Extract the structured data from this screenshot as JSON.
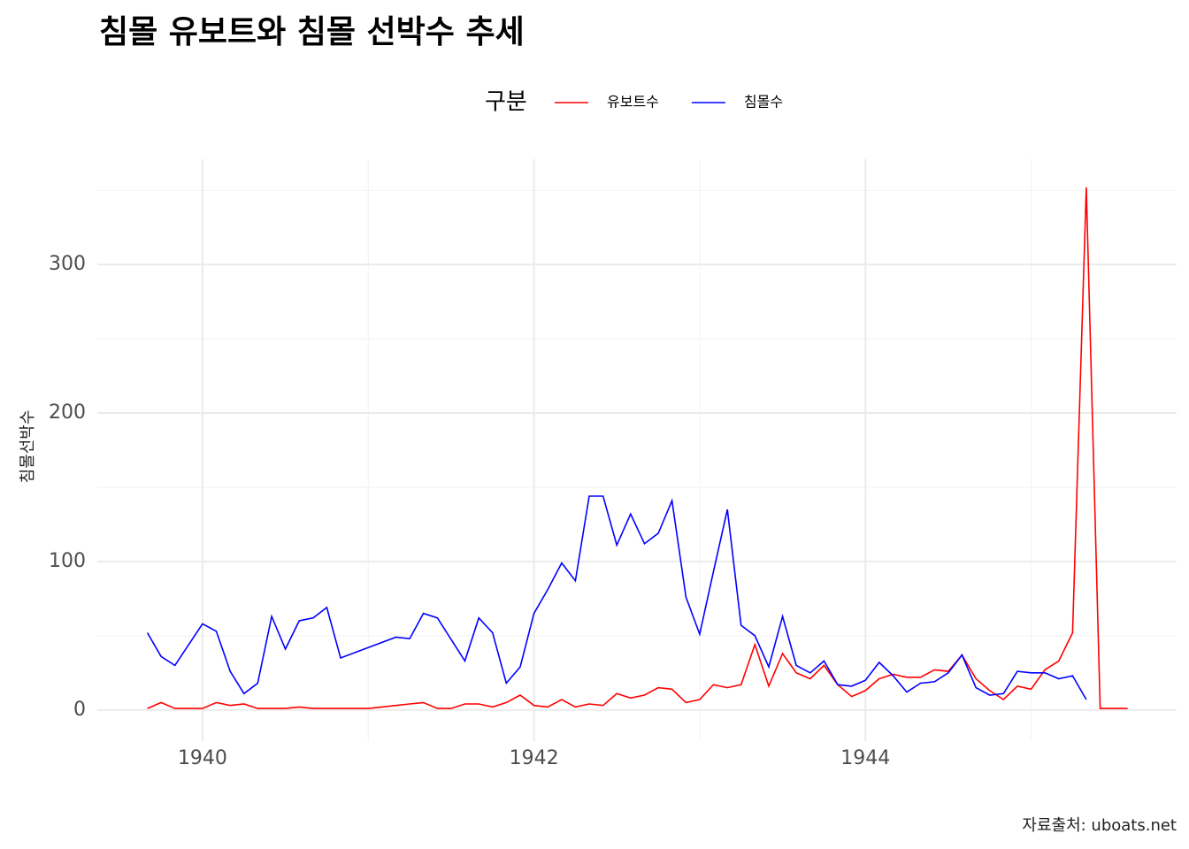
{
  "chart_data": {
    "type": "line",
    "title": "침몰 유보트와 침몰 선박수 추세",
    "y_label": "침몰선박수",
    "legend_title": "구분",
    "caption": "자료출처: uboats.net",
    "legend": "top",
    "grid": true,
    "xlim": [
      1939.365,
      1945.878
    ],
    "ylim": [
      -21,
      371
    ],
    "xticks": [
      1940,
      1942,
      1944
    ],
    "yticks": [
      0,
      100,
      200,
      300
    ],
    "x_minor_grid": [
      1941,
      1943,
      1945
    ],
    "y_minor_grid": [
      50,
      150,
      250,
      350
    ],
    "series": [
      {
        "name": "유보트수",
        "color": "#ff0000",
        "x": [
          1939.667,
          1939.75,
          1939.833,
          1939.917,
          1940,
          1940.083,
          1940.167,
          1940.25,
          1940.333,
          1940.417,
          1940.5,
          1940.583,
          1940.667,
          1940.75,
          1940.833,
          1940.917,
          1941,
          1941.083,
          1941.167,
          1941.25,
          1941.333,
          1941.417,
          1941.5,
          1941.583,
          1941.667,
          1941.75,
          1941.833,
          1941.917,
          1942,
          1942.083,
          1942.167,
          1942.25,
          1942.333,
          1942.417,
          1942.5,
          1942.583,
          1942.667,
          1942.75,
          1942.833,
          1942.917,
          1943,
          1943.083,
          1943.167,
          1943.25,
          1943.333,
          1943.417,
          1943.5,
          1943.583,
          1943.667,
          1943.75,
          1943.833,
          1943.917,
          1944,
          1944.083,
          1944.167,
          1944.25,
          1944.333,
          1944.417,
          1944.5,
          1944.583,
          1944.667,
          1944.75,
          1944.833,
          1944.917,
          1945,
          1945.083,
          1945.167,
          1945.25,
          1945.333,
          1945.417,
          1945.5,
          1945.583
        ],
        "values": [
          1,
          5,
          1,
          1,
          1,
          5,
          3,
          4,
          1,
          1,
          1,
          2,
          1,
          1,
          1,
          1,
          1,
          2,
          3,
          4,
          5,
          1,
          1,
          4,
          4,
          2,
          5,
          10,
          3,
          2,
          7,
          2,
          4,
          3,
          11,
          8,
          10,
          15,
          14,
          5,
          7,
          17,
          15,
          17,
          44,
          16,
          38,
          25,
          21,
          30,
          17,
          9,
          13,
          21,
          24,
          22,
          22,
          27,
          26,
          37,
          21,
          13,
          7,
          16,
          14,
          27,
          33,
          52,
          352,
          1,
          1,
          1
        ]
      },
      {
        "name": "침몰수",
        "color": "#0000ff",
        "x": [
          1939.667,
          1939.75,
          1939.833,
          1940,
          1940.083,
          1940.167,
          1940.25,
          1940.333,
          1940.417,
          1940.5,
          1940.583,
          1940.667,
          1940.75,
          1940.833,
          1941.167,
          1941.25,
          1941.333,
          1941.417,
          1941.583,
          1941.667,
          1941.75,
          1941.833,
          1941.917,
          1942,
          1942.083,
          1942.167,
          1942.25,
          1942.333,
          1942.417,
          1942.5,
          1942.583,
          1942.667,
          1942.75,
          1942.833,
          1942.917,
          1943,
          1943.083,
          1943.167,
          1943.25,
          1943.333,
          1943.417,
          1943.5,
          1943.583,
          1943.667,
          1943.75,
          1943.833,
          1943.917,
          1944,
          1944.083,
          1944.167,
          1944.25,
          1944.333,
          1944.417,
          1944.5,
          1944.583,
          1944.667,
          1944.75,
          1944.833,
          1944.917,
          1945,
          1945.083,
          1945.167,
          1945.25,
          1945.333
        ],
        "values": [
          52,
          36,
          30,
          58,
          53,
          26,
          11,
          18,
          63,
          41,
          60,
          62,
          69,
          35,
          49,
          48,
          65,
          62,
          33,
          62,
          52,
          18,
          29,
          65,
          81,
          99,
          87,
          144,
          144,
          111,
          132,
          112,
          119,
          141,
          76,
          51,
          93,
          135,
          57,
          50,
          29,
          63,
          30,
          25,
          33,
          17,
          16,
          20,
          32,
          23,
          12,
          18,
          19,
          25,
          37,
          15,
          10,
          11,
          26,
          25,
          25,
          21,
          23,
          7
        ]
      }
    ]
  }
}
